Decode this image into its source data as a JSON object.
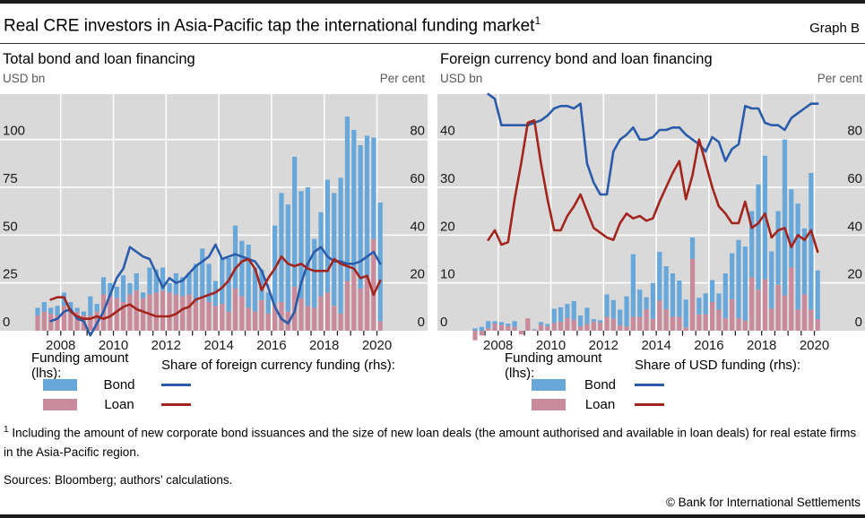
{
  "header": {
    "title": "Real CRE investors in Asia-Pacific tap the international funding market",
    "title_sup": "1",
    "graph_label": "Graph B"
  },
  "colors": {
    "bond_bar": "#68a7da",
    "loan_bar": "#c98b9b",
    "bond_line": "#2b5ca9",
    "loan_line": "#a2251d",
    "plot_bg": "#d9d9d9",
    "grid": "#ffffff",
    "axis_text": "#1a1a1a",
    "tick": "#222222"
  },
  "footnote": {
    "sup": "1",
    "text": " Including the amount of new corporate bond issuances and the size of new loan deals (the amount authorised and available in loan deals) for real estate firms in the Asia-Pacific region."
  },
  "sources": "Sources: Bloomberg; authors’ calculations.",
  "copyright": "© Bank for International Settlements",
  "chart_data": [
    {
      "type": "bar",
      "title": "Total bond and loan financing",
      "lhs_unit": "USD bn",
      "rhs_unit": "Per cent",
      "lhs_ticks": [
        0,
        25,
        50,
        75,
        100
      ],
      "rhs_ticks": [
        0,
        20,
        40,
        60,
        80
      ],
      "lhs_range": [
        0,
        124
      ],
      "rhs_range": [
        0,
        99
      ],
      "grid": true,
      "legend_position": "bottom",
      "x_year_labels": [
        "2008",
        "2010",
        "2012",
        "2014",
        "2016",
        "2018",
        "2020"
      ],
      "categories": [
        "2007-Q1",
        "2007-Q2",
        "2007-Q3",
        "2007-Q4",
        "2008-Q1",
        "2008-Q2",
        "2008-Q3",
        "2008-Q4",
        "2009-Q1",
        "2009-Q2",
        "2009-Q3",
        "2009-Q4",
        "2010-Q1",
        "2010-Q2",
        "2010-Q3",
        "2010-Q4",
        "2011-Q1",
        "2011-Q2",
        "2011-Q3",
        "2011-Q4",
        "2012-Q1",
        "2012-Q2",
        "2012-Q3",
        "2012-Q4",
        "2013-Q1",
        "2013-Q2",
        "2013-Q3",
        "2013-Q4",
        "2014-Q1",
        "2014-Q2",
        "2014-Q3",
        "2014-Q4",
        "2015-Q1",
        "2015-Q2",
        "2015-Q3",
        "2015-Q4",
        "2016-Q1",
        "2016-Q2",
        "2016-Q3",
        "2016-Q4",
        "2017-Q1",
        "2017-Q2",
        "2017-Q3",
        "2017-Q4",
        "2018-Q1",
        "2018-Q2",
        "2018-Q3",
        "2018-Q4",
        "2019-Q1",
        "2019-Q2",
        "2019-Q3",
        "2019-Q4",
        "2020-Q1"
      ],
      "series": [
        {
          "name": "Bond (lhs, USD bn)",
          "axis": "lhs",
          "kind": "bar-stack",
          "values": [
            4,
            5,
            3,
            5,
            7,
            6,
            2,
            2,
            10,
            4,
            9,
            7,
            6,
            14,
            6,
            9,
            3,
            14,
            12,
            12,
            5,
            11,
            10,
            11,
            20,
            26,
            20,
            13,
            24,
            28,
            33,
            29,
            33,
            23,
            16,
            11,
            41,
            57,
            56,
            68,
            56,
            62,
            36,
            44,
            59,
            59,
            71,
            86,
            74,
            75,
            74,
            53,
            62
          ]
        },
        {
          "name": "Loan (lhs, USD bn)",
          "axis": "lhs",
          "kind": "bar-stack",
          "values": [
            8,
            10,
            9,
            8,
            13,
            9,
            10,
            8,
            8,
            10,
            19,
            18,
            17,
            15,
            19,
            21,
            17,
            19,
            20,
            21,
            20,
            19,
            18,
            19,
            15,
            17,
            15,
            13,
            14,
            10,
            22,
            18,
            12,
            10,
            16,
            9,
            14,
            15,
            10,
            23,
            17,
            13,
            12,
            18,
            20,
            13,
            9,
            26,
            31,
            22,
            28,
            48,
            5
          ]
        },
        {
          "name": "Share of foreign currency funding, bond (rhs, %)",
          "axis": "rhs",
          "kind": "line",
          "values": [
            null,
            null,
            4,
            5,
            8,
            9,
            5,
            4,
            -2,
            3,
            8,
            15,
            22,
            26,
            35,
            33,
            31,
            30,
            24,
            18,
            22,
            20,
            21,
            24,
            27,
            29,
            31,
            36,
            30,
            31,
            32,
            31,
            30,
            29,
            25,
            18,
            10,
            5,
            3,
            8,
            20,
            28,
            33,
            35,
            31,
            29,
            29,
            28,
            28,
            29,
            31,
            33,
            28
          ]
        },
        {
          "name": "Share of foreign currency funding, loan (rhs, %)",
          "axis": "rhs",
          "kind": "line",
          "values": [
            null,
            null,
            13,
            14,
            14,
            8,
            6,
            5,
            5,
            6,
            5,
            6,
            8,
            10,
            11,
            9,
            8,
            7,
            6,
            6,
            6,
            7,
            9,
            10,
            13,
            14,
            15,
            16,
            18,
            21,
            26,
            29,
            30,
            26,
            17,
            22,
            26,
            31,
            28,
            27,
            28,
            26,
            25,
            25,
            25,
            30,
            28,
            27,
            26,
            22,
            23,
            15,
            21
          ]
        }
      ],
      "legend": {
        "lhs_header": "Funding amount (lhs):",
        "rhs_header": "Share of foreign currency funding (rhs):",
        "bar_labels": [
          "Bond",
          "Loan"
        ]
      }
    },
    {
      "type": "bar",
      "title": "Foreign currency bond and loan financing",
      "lhs_unit": "USD bn",
      "rhs_unit": "Per cent",
      "lhs_ticks": [
        0,
        10,
        20,
        30,
        40
      ],
      "rhs_ticks": [
        0,
        20,
        40,
        60,
        80
      ],
      "lhs_range": [
        0,
        49.5
      ],
      "rhs_range": [
        0,
        99
      ],
      "grid": true,
      "legend_position": "bottom",
      "x_year_labels": [
        "2008",
        "2010",
        "2012",
        "2014",
        "2016",
        "2018",
        "2020"
      ],
      "categories": [
        "2007-Q1",
        "2007-Q2",
        "2007-Q3",
        "2007-Q4",
        "2008-Q1",
        "2008-Q2",
        "2008-Q3",
        "2008-Q4",
        "2009-Q1",
        "2009-Q2",
        "2009-Q3",
        "2009-Q4",
        "2010-Q1",
        "2010-Q2",
        "2010-Q3",
        "2010-Q4",
        "2011-Q1",
        "2011-Q2",
        "2011-Q3",
        "2011-Q4",
        "2012-Q1",
        "2012-Q2",
        "2012-Q3",
        "2012-Q4",
        "2013-Q1",
        "2013-Q2",
        "2013-Q3",
        "2013-Q4",
        "2014-Q1",
        "2014-Q2",
        "2014-Q3",
        "2014-Q4",
        "2015-Q1",
        "2015-Q2",
        "2015-Q3",
        "2015-Q4",
        "2016-Q1",
        "2016-Q2",
        "2016-Q3",
        "2016-Q4",
        "2017-Q1",
        "2017-Q2",
        "2017-Q3",
        "2017-Q4",
        "2018-Q1",
        "2018-Q2",
        "2018-Q3",
        "2018-Q4",
        "2019-Q1",
        "2019-Q2",
        "2019-Q3",
        "2019-Q4",
        "2020-Q1"
      ],
      "series": [
        {
          "name": "Bond (lhs, USD bn)",
          "axis": "lhs",
          "kind": "bar-stack",
          "values": [
            0.5,
            0.8,
            1.5,
            0.5,
            0.6,
            0.5,
            1.2,
            0,
            0,
            0.1,
            0.6,
            0.5,
            3,
            3,
            2.9,
            3.9,
            2.3,
            3.4,
            0.5,
            0.5,
            4.7,
            3.9,
            3.3,
            6.3,
            13.1,
            5.7,
            2.5,
            7.5,
            10.2,
            9,
            9.1,
            7.6,
            5.8,
            4.5,
            3.5,
            4.4,
            4.6,
            3.4,
            9.4,
            9.6,
            16.4,
            15.5,
            13.8,
            22,
            25.8,
            12,
            15.4,
            32.6,
            16.4,
            22.2,
            13.8,
            28.6,
            10.2
          ]
        },
        {
          "name": "Loan (lhs, USD bn)",
          "axis": "lhs",
          "kind": "bar-stack",
          "values": [
            -1,
            -0.5,
            0.5,
            1.5,
            1.2,
            1,
            0.8,
            -0.4,
            2.6,
            0.2,
            1.2,
            0.9,
            1.6,
            1.9,
            2.7,
            2.3,
            0.9,
            1.4,
            1.9,
            1.7,
            2.9,
            2.5,
            1.1,
            0.9,
            2.9,
            2.9,
            4.5,
            2.5,
            6.3,
            4.5,
            2.9,
            2.9,
            0.7,
            15,
            3.4,
            3.4,
            6,
            4.4,
            2.6,
            6.6,
            2.6,
            2.1,
            11.2,
            8.6,
            10.8,
            4.6,
            9.6,
            7.4,
            13.2,
            4.4,
            7.6,
            4.4,
            2.4
          ]
        },
        {
          "name": "Share of USD funding, bond (rhs, %)",
          "axis": "rhs",
          "kind": "line",
          "values": [
            null,
            null,
            99,
            97,
            86,
            86,
            86,
            86,
            86,
            87,
            88,
            90,
            93,
            94,
            94,
            93,
            95,
            70,
            62,
            57,
            57,
            75,
            80,
            82,
            85,
            80,
            80,
            81,
            84,
            84,
            85,
            85,
            82,
            80,
            78,
            75,
            81,
            79,
            71,
            76,
            78,
            94,
            93,
            93,
            87,
            86,
            86,
            84,
            89,
            91,
            93,
            95,
            95
          ]
        },
        {
          "name": "Share of USD funding, loan (rhs, %)",
          "axis": "rhs",
          "kind": "line",
          "values": [
            null,
            null,
            38,
            42,
            36,
            37,
            55,
            70,
            87,
            88,
            70,
            55,
            42,
            42,
            48,
            52,
            57,
            50,
            43,
            41,
            39,
            38,
            45,
            49,
            47,
            48,
            46,
            47,
            54,
            60,
            66,
            71,
            55,
            65,
            80,
            70,
            60,
            52,
            49,
            45,
            45,
            54,
            43,
            45,
            49,
            39,
            42,
            43,
            35,
            40,
            38,
            42,
            33
          ]
        }
      ],
      "legend": {
        "lhs_header": "Funding amount (lhs):",
        "rhs_header": "Share of USD funding (rhs):",
        "bar_labels": [
          "Bond",
          "Loan"
        ]
      }
    }
  ]
}
